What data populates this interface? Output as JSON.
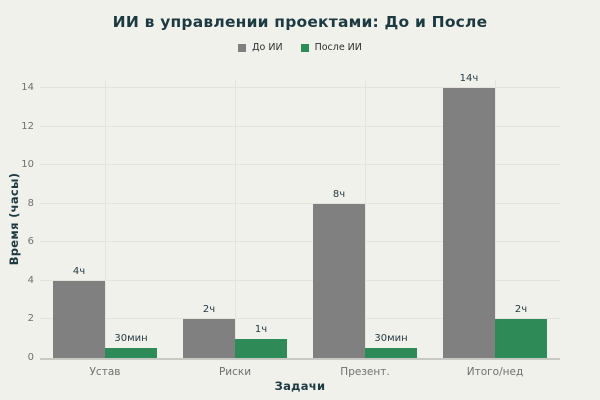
{
  "title": "ИИ в управлении проектами: До и После",
  "colors": {
    "background": "#f1f1ec",
    "title": "#1d3a42",
    "grid": "#e4e4dd",
    "baseline": "#c9c9c3",
    "tick": "#6f6f6f",
    "value_label": "#243b40",
    "bar_before": "#808080",
    "bar_after": "#2e8b57",
    "legend_text": "#2f2f2f"
  },
  "legend": {
    "items": [
      {
        "label": "До ИИ",
        "color": "#808080"
      },
      {
        "label": "После ИИ",
        "color": "#2e8b57"
      }
    ]
  },
  "chart_data": {
    "type": "bar",
    "title": "ИИ в управлении проектами: До и После",
    "xlabel": "Задачи",
    "ylabel": "Время (часы)",
    "categories": [
      "Устав",
      "Риски",
      "Презент.",
      "Итого/нед"
    ],
    "series": [
      {
        "name": "До ИИ",
        "color": "#808080",
        "values": [
          4,
          2,
          8,
          14
        ],
        "labels": [
          "4ч",
          "2ч",
          "8ч",
          "14ч"
        ]
      },
      {
        "name": "После ИИ",
        "color": "#2e8b57",
        "values": [
          0.5,
          1,
          0.5,
          2
        ],
        "labels": [
          "30мин",
          "1ч",
          "30мин",
          "2ч"
        ]
      }
    ],
    "ylim": [
      0,
      14.4
    ],
    "yticks": [
      0,
      2,
      4,
      6,
      8,
      10,
      12,
      14
    ],
    "grid": true,
    "legend_position": "top-center"
  }
}
